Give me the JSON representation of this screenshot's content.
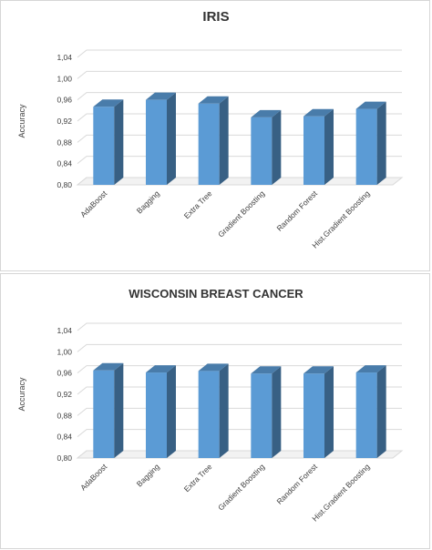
{
  "chart_data": [
    {
      "type": "bar",
      "title": "IRIS",
      "ylabel": "Accuracy",
      "xlabel": "",
      "ylim": [
        0.8,
        1.04
      ],
      "yticks": [
        "0,80",
        "0,84",
        "0,88",
        "0,92",
        "0,96",
        "1,00",
        "1,04"
      ],
      "grid": true,
      "legend": "none",
      "bar_color": "#5b9bd5",
      "categories": [
        "AdaBoost",
        "Bagging",
        "Extra Tree",
        "Gradient Boosting",
        "Random Forest",
        "Hist.Gradient Boosting"
      ],
      "values": [
        0.947,
        0.96,
        0.953,
        0.927,
        0.929,
        0.943
      ]
    },
    {
      "type": "bar",
      "title": "WISCONSIN BREAST CANCER",
      "ylabel": "Accuracy",
      "xlabel": "",
      "ylim": [
        0.8,
        1.04
      ],
      "yticks": [
        "0,80",
        "0,84",
        "0,88",
        "0,92",
        "0,96",
        "1,00",
        "1,04"
      ],
      "grid": true,
      "legend": "none",
      "bar_color": "#5b9bd5",
      "categories": [
        "AdaBoost",
        "Bagging",
        "Extra Tree",
        "Gradient Boosting",
        "Random Forest",
        "Hist.Gradient Boosting"
      ],
      "values": [
        0.965,
        0.961,
        0.964,
        0.959,
        0.959,
        0.961
      ]
    }
  ]
}
